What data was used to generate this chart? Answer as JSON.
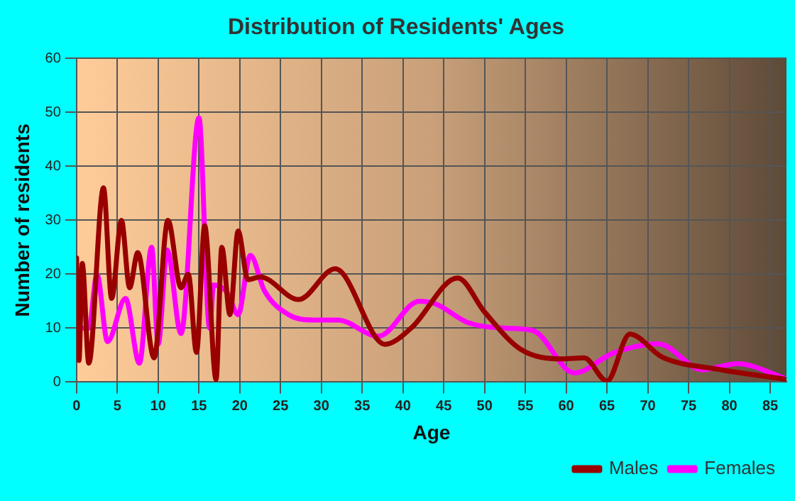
{
  "chart_data": {
    "type": "line",
    "title": "Distribution of Residents' Ages",
    "xlabel": "Age",
    "ylabel": "Number of residents",
    "xlim": [
      0,
      87
    ],
    "xticks": [
      0,
      5,
      10,
      15,
      20,
      25,
      30,
      35,
      40,
      45,
      50,
      55,
      60,
      65,
      70,
      75,
      80,
      85
    ],
    "ylim": [
      0,
      60
    ],
    "yticks": [
      0,
      10,
      20,
      30,
      40,
      50,
      60
    ],
    "grid": true,
    "legend": "bottom right",
    "marker": "none",
    "line_style": "solid",
    "series": [
      {
        "name": "Males",
        "color": "#990000",
        "x": [
          0,
          0.3,
          0.7,
          1.5,
          3.3,
          4.3,
          5.5,
          6.5,
          7.5,
          9.5,
          11.2,
          12.8,
          13.7,
          14.7,
          15.7,
          17.1,
          17.8,
          18.8,
          19.8,
          21,
          22.5,
          27.2,
          31.7,
          37.8,
          41,
          46.7,
          50,
          54.4,
          59.5,
          62.2,
          65,
          67.8,
          71.8,
          78.5,
          87
        ],
        "values": [
          23,
          4,
          22,
          3.5,
          36,
          15.5,
          30,
          17.5,
          24,
          4.5,
          30,
          17.5,
          20,
          5.5,
          29,
          0.5,
          25,
          12.5,
          28,
          19,
          19.5,
          15.3,
          21,
          7,
          10,
          19.3,
          13,
          6.1,
          4.3,
          4.5,
          0.2,
          8.9,
          4.6,
          2.4,
          0.5
        ]
      },
      {
        "name": "Females",
        "color": "#ff00ff",
        "x": [
          0.5,
          1.5,
          2.5,
          3.8,
          6,
          7.7,
          9.2,
          10,
          11.1,
          12.8,
          15,
          16.3,
          16.8,
          18.5,
          19.8,
          21.3,
          23,
          26,
          29,
          32,
          37,
          42,
          44,
          48,
          52.7,
          56,
          61,
          65.8,
          71.3,
          76.7,
          81,
          87
        ],
        "values": [
          10,
          10,
          20,
          7.5,
          15.5,
          3.5,
          25,
          7,
          24.5,
          9,
          49,
          10,
          18,
          16.5,
          12.5,
          23.5,
          17,
          12.5,
          11.5,
          11.5,
          8.5,
          15,
          14.5,
          11,
          10,
          9.5,
          1.7,
          5.4,
          7.1,
          2.3,
          3.4,
          0.6
        ]
      }
    ]
  }
}
